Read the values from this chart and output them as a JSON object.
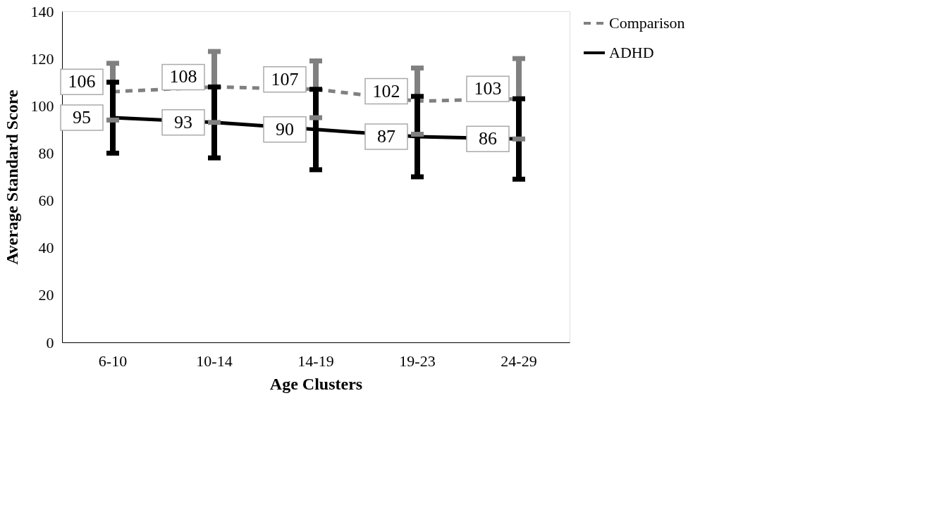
{
  "chart_data": {
    "type": "line",
    "xlabel": "Age Clusters",
    "ylabel": "Average Standard Score",
    "categories": [
      "6-10",
      "10-14",
      "14-19",
      "19-23",
      "24-29"
    ],
    "series": [
      {
        "name": "Comparison",
        "color": "#808080",
        "line_style": "dashed",
        "values": [
          106,
          108,
          107,
          102,
          103
        ],
        "errors": [
          12,
          15,
          12,
          14,
          17
        ]
      },
      {
        "name": "ADHD",
        "color": "#000000",
        "line_style": "solid",
        "values": [
          95,
          93,
          90,
          87,
          86
        ],
        "errors": [
          15,
          15,
          17,
          17,
          17
        ]
      }
    ],
    "ylim": [
      0,
      140
    ],
    "yticks": [
      0,
      20,
      40,
      60,
      80,
      100,
      120,
      140
    ],
    "grid": false,
    "legend": "right",
    "data_labels": true
  }
}
